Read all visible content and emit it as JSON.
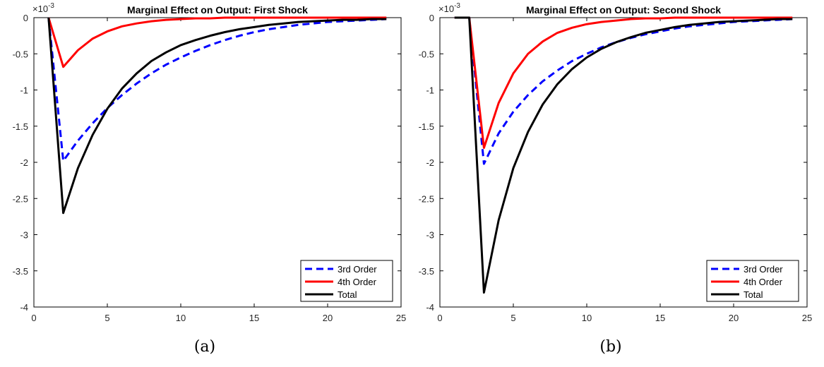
{
  "chart_data": [
    {
      "type": "line",
      "title": "Marginal Effect on Output: First Shock",
      "caption": "(a)",
      "exponent_label": "×10",
      "exponent_power": "-3",
      "xlim": [
        0,
        25
      ],
      "ylim": [
        -4,
        0
      ],
      "xticks": [
        0,
        5,
        10,
        15,
        20,
        25
      ],
      "yticks": [
        0,
        -0.5,
        -1,
        -1.5,
        -2,
        -2.5,
        -3,
        -3.5,
        -4
      ],
      "xtick_labels": [
        "0",
        "5",
        "10",
        "15",
        "20",
        "25"
      ],
      "ytick_labels": [
        "0",
        "-0.5",
        "-1",
        "-1.5",
        "-2",
        "-2.5",
        "-3",
        "-3.5",
        "-4"
      ],
      "legend_position": "bottom-right",
      "x": [
        1,
        2,
        3,
        4,
        5,
        6,
        7,
        8,
        9,
        10,
        11,
        12,
        13,
        14,
        15,
        16,
        17,
        18,
        19,
        20,
        21,
        22,
        23,
        24
      ],
      "series": [
        {
          "name": "3rd Order",
          "color": "#0000ff",
          "dash": "dashed",
          "values": [
            0,
            -1.98,
            -1.7,
            -1.46,
            -1.25,
            -1.07,
            -0.91,
            -0.77,
            -0.65,
            -0.55,
            -0.46,
            -0.38,
            -0.31,
            -0.25,
            -0.2,
            -0.16,
            -0.13,
            -0.1,
            -0.08,
            -0.06,
            -0.05,
            -0.04,
            -0.03,
            -0.02
          ]
        },
        {
          "name": "4th Order",
          "color": "#ff0000",
          "dash": "solid",
          "values": [
            0,
            -0.68,
            -0.45,
            -0.29,
            -0.19,
            -0.12,
            -0.08,
            -0.05,
            -0.03,
            -0.02,
            -0.01,
            -0.01,
            0,
            0,
            0,
            0,
            0,
            0,
            0,
            0,
            0,
            0,
            0,
            0
          ]
        },
        {
          "name": "Total",
          "color": "#000000",
          "dash": "solid",
          "values": [
            0,
            -2.7,
            -2.08,
            -1.62,
            -1.26,
            -0.98,
            -0.77,
            -0.6,
            -0.48,
            -0.38,
            -0.31,
            -0.25,
            -0.2,
            -0.16,
            -0.13,
            -0.1,
            -0.08,
            -0.06,
            -0.05,
            -0.04,
            -0.03,
            -0.03,
            -0.02,
            -0.02
          ]
        }
      ]
    },
    {
      "type": "line",
      "title": "Marginal Effect on Output: Second Shock",
      "caption": "(b)",
      "exponent_label": "×10",
      "exponent_power": "-3",
      "xlim": [
        0,
        25
      ],
      "ylim": [
        -4,
        0
      ],
      "xticks": [
        0,
        5,
        10,
        15,
        20,
        25
      ],
      "yticks": [
        0,
        -0.5,
        -1,
        -1.5,
        -2,
        -2.5,
        -3,
        -3.5,
        -4
      ],
      "xtick_labels": [
        "0",
        "5",
        "10",
        "15",
        "20",
        "25"
      ],
      "ytick_labels": [
        "0",
        "-0.5",
        "-1",
        "-1.5",
        "-2",
        "-2.5",
        "-3",
        "-3.5",
        "-4"
      ],
      "legend_position": "bottom-right",
      "x": [
        1,
        2,
        3,
        4,
        5,
        6,
        7,
        8,
        9,
        10,
        11,
        12,
        13,
        14,
        15,
        16,
        17,
        18,
        19,
        20,
        21,
        22,
        23,
        24
      ],
      "series": [
        {
          "name": "3rd Order",
          "color": "#0000ff",
          "dash": "dashed",
          "values": [
            0,
            0,
            -2.02,
            -1.6,
            -1.3,
            -1.07,
            -0.88,
            -0.73,
            -0.6,
            -0.5,
            -0.41,
            -0.34,
            -0.28,
            -0.23,
            -0.19,
            -0.15,
            -0.12,
            -0.1,
            -0.08,
            -0.06,
            -0.05,
            -0.04,
            -0.03,
            -0.02
          ]
        },
        {
          "name": "4th Order",
          "color": "#ff0000",
          "dash": "solid",
          "values": [
            0,
            0,
            -1.8,
            -1.18,
            -0.77,
            -0.5,
            -0.33,
            -0.21,
            -0.14,
            -0.09,
            -0.06,
            -0.04,
            -0.02,
            -0.01,
            -0.01,
            0,
            0,
            0,
            0,
            0,
            0,
            0,
            0,
            0
          ]
        },
        {
          "name": "Total",
          "color": "#000000",
          "dash": "solid",
          "values": [
            0,
            0,
            -3.8,
            -2.8,
            -2.08,
            -1.58,
            -1.2,
            -0.92,
            -0.71,
            -0.55,
            -0.43,
            -0.34,
            -0.27,
            -0.21,
            -0.17,
            -0.13,
            -0.1,
            -0.08,
            -0.06,
            -0.05,
            -0.04,
            -0.03,
            -0.02,
            -0.02
          ]
        }
      ]
    }
  ]
}
